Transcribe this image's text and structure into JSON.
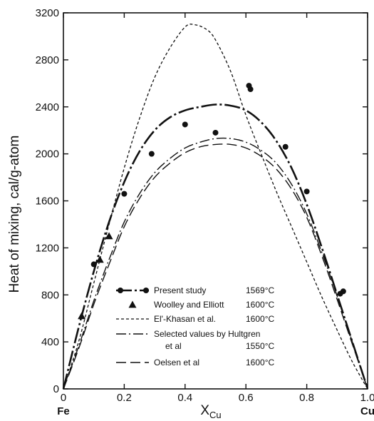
{
  "chart_data": {
    "type": "line",
    "xlabel": "X",
    "xlabel_sub": "Cu",
    "ylabel": "Heat of mixing,  cal/g-atom",
    "xlim": [
      0,
      1.0
    ],
    "ylim": [
      0,
      3200
    ],
    "x_ticks": [
      {
        "value": 0,
        "label": "0"
      },
      {
        "value": 0.2,
        "label": "0.2"
      },
      {
        "value": 0.4,
        "label": "0.4"
      },
      {
        "value": 0.6,
        "label": "0.6"
      },
      {
        "value": 0.8,
        "label": "0.8"
      },
      {
        "value": 1.0,
        "label": "1.0"
      }
    ],
    "y_ticks": [
      {
        "value": 0,
        "label": "0"
      },
      {
        "value": 400,
        "label": "400"
      },
      {
        "value": 800,
        "label": "800"
      },
      {
        "value": 1200,
        "label": "1200"
      },
      {
        "value": 1600,
        "label": "1600"
      },
      {
        "value": 2000,
        "label": "2000"
      },
      {
        "value": 2400,
        "label": "2400"
      },
      {
        "value": 2800,
        "label": "2800"
      },
      {
        "value": 3200,
        "label": "3200"
      }
    ],
    "end_labels": {
      "left": "Fe",
      "right": "Cu"
    },
    "grid": false,
    "legend_position": "bottom-center",
    "series": [
      {
        "name": "Present study",
        "temperature": "1569°C",
        "style": "long-dash-dot",
        "marker": "circle",
        "curve": [
          [
            0,
            0
          ],
          [
            0.05,
            520
          ],
          [
            0.1,
            1000
          ],
          [
            0.15,
            1420
          ],
          [
            0.2,
            1760
          ],
          [
            0.25,
            2020
          ],
          [
            0.3,
            2200
          ],
          [
            0.35,
            2310
          ],
          [
            0.4,
            2370
          ],
          [
            0.45,
            2400
          ],
          [
            0.5,
            2420
          ],
          [
            0.55,
            2410
          ],
          [
            0.6,
            2370
          ],
          [
            0.65,
            2270
          ],
          [
            0.7,
            2110
          ],
          [
            0.75,
            1880
          ],
          [
            0.8,
            1570
          ],
          [
            0.85,
            1200
          ],
          [
            0.9,
            800
          ],
          [
            0.95,
            400
          ],
          [
            1.0,
            0
          ]
        ],
        "points": [
          [
            0.1,
            1060
          ],
          [
            0.2,
            1660
          ],
          [
            0.29,
            2000
          ],
          [
            0.4,
            2250
          ],
          [
            0.5,
            2180
          ],
          [
            0.61,
            2580
          ],
          [
            0.615,
            2550
          ],
          [
            0.73,
            2060
          ],
          [
            0.8,
            1680
          ],
          [
            0.91,
            810
          ],
          [
            0.92,
            830
          ]
        ]
      },
      {
        "name": "Woolley and Elliott",
        "temperature": "1600°C",
        "style": "none",
        "marker": "triangle",
        "points": [
          [
            0.06,
            620
          ],
          [
            0.12,
            1100
          ],
          [
            0.15,
            1300
          ]
        ]
      },
      {
        "name": "El'-Khasan et al.",
        "temperature": "1600°C",
        "style": "short-dash",
        "curve": [
          [
            0,
            0
          ],
          [
            0.05,
            400
          ],
          [
            0.1,
            900
          ],
          [
            0.15,
            1400
          ],
          [
            0.2,
            1880
          ],
          [
            0.25,
            2300
          ],
          [
            0.3,
            2650
          ],
          [
            0.35,
            2900
          ],
          [
            0.4,
            3080
          ],
          [
            0.43,
            3100
          ],
          [
            0.47,
            3060
          ],
          [
            0.5,
            2970
          ],
          [
            0.55,
            2700
          ],
          [
            0.6,
            2330
          ],
          [
            0.65,
            2000
          ],
          [
            0.7,
            1680
          ],
          [
            0.75,
            1380
          ],
          [
            0.8,
            1080
          ],
          [
            0.85,
            780
          ],
          [
            0.9,
            500
          ],
          [
            0.95,
            230
          ],
          [
            1.0,
            0
          ]
        ]
      },
      {
        "name": "Selected values by Hultgren",
        "name_line2": "et al",
        "temperature": "1550°C",
        "style": "dash-dot",
        "curve": [
          [
            0,
            0
          ],
          [
            0.05,
            360
          ],
          [
            0.1,
            750
          ],
          [
            0.15,
            1100
          ],
          [
            0.2,
            1420
          ],
          [
            0.25,
            1660
          ],
          [
            0.3,
            1840
          ],
          [
            0.35,
            1960
          ],
          [
            0.4,
            2050
          ],
          [
            0.45,
            2100
          ],
          [
            0.5,
            2130
          ],
          [
            0.55,
            2130
          ],
          [
            0.6,
            2100
          ],
          [
            0.65,
            2030
          ],
          [
            0.7,
            1920
          ],
          [
            0.75,
            1740
          ],
          [
            0.8,
            1490
          ],
          [
            0.85,
            1160
          ],
          [
            0.9,
            790
          ],
          [
            0.95,
            400
          ],
          [
            1.0,
            0
          ]
        ]
      },
      {
        "name": "Oelsen et al",
        "temperature": "1600°C",
        "style": "long-dash",
        "curve": [
          [
            0,
            0
          ],
          [
            0.05,
            340
          ],
          [
            0.1,
            720
          ],
          [
            0.15,
            1060
          ],
          [
            0.2,
            1380
          ],
          [
            0.25,
            1620
          ],
          [
            0.3,
            1800
          ],
          [
            0.35,
            1920
          ],
          [
            0.4,
            2010
          ],
          [
            0.45,
            2060
          ],
          [
            0.5,
            2080
          ],
          [
            0.55,
            2080
          ],
          [
            0.6,
            2050
          ],
          [
            0.65,
            1980
          ],
          [
            0.7,
            1870
          ],
          [
            0.75,
            1700
          ],
          [
            0.8,
            1460
          ],
          [
            0.85,
            1130
          ],
          [
            0.9,
            760
          ],
          [
            0.95,
            380
          ],
          [
            1.0,
            0
          ]
        ]
      }
    ]
  }
}
